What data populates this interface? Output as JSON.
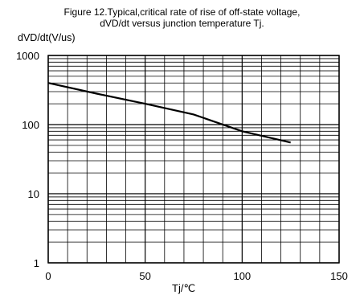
{
  "chart_data": {
    "type": "line",
    "title_line1": "Figure 12.Typical,critical rate of rise of off-state voltage,",
    "title_line2": "dVD/dt versus junction temperature Tj.",
    "xlabel": "Tj/℃",
    "ylabel": "dVD/dt(V/us)",
    "xlim": [
      0,
      150
    ],
    "ylim": [
      1,
      1000
    ],
    "yscale": "log",
    "grid": true,
    "x_ticks": [
      0,
      50,
      100,
      150
    ],
    "x_tick_labels": [
      "0",
      "50",
      "100",
      "150"
    ],
    "y_ticks": [
      1,
      10,
      100,
      1000
    ],
    "y_tick_labels": [
      "1",
      "10",
      "100",
      "1000"
    ],
    "series": [
      {
        "x": [
          0,
          25,
          50,
          75,
          100,
          125
        ],
        "y": [
          400,
          280,
          200,
          140,
          80,
          55
        ]
      }
    ],
    "colors": {
      "line": "#000000",
      "grid": "#000000"
    }
  }
}
